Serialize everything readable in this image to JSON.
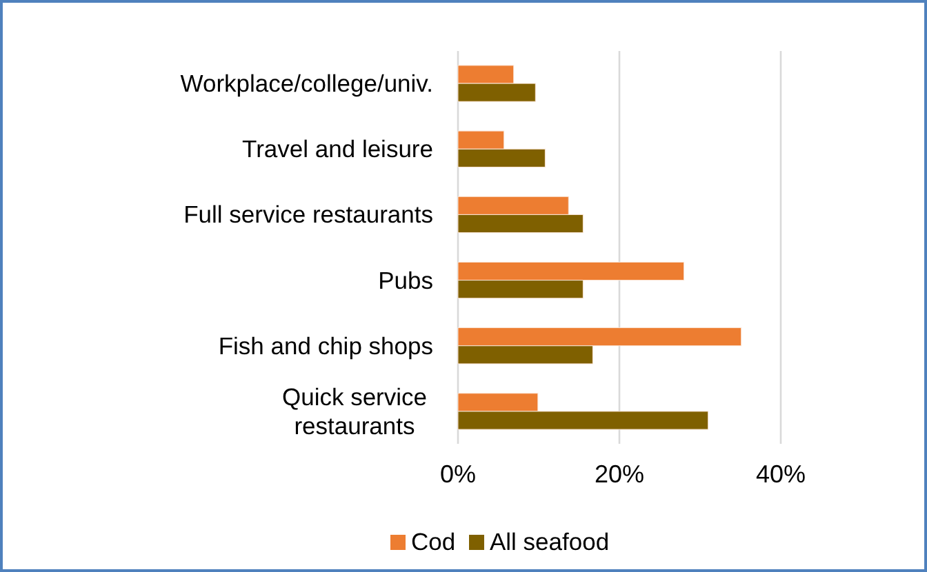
{
  "chart_data": {
    "type": "bar",
    "orientation": "horizontal",
    "categories": [
      "Workplace/college/univ.",
      "Travel and leisure",
      "Full service restaurants",
      "Pubs",
      "Fish and chip shops",
      "Quick service restaurants"
    ],
    "series": [
      {
        "name": "Cod",
        "color": "#ed7d31",
        "values": [
          6.9,
          5.7,
          13.7,
          28.0,
          35.1,
          9.9
        ]
      },
      {
        "name": "All seafood",
        "color": "#7f6000",
        "values": [
          9.6,
          10.8,
          15.5,
          15.5,
          16.7,
          31.0
        ]
      }
    ],
    "xlim": [
      0,
      40
    ],
    "xticks": [
      {
        "value": 0,
        "label": "0%"
      },
      {
        "value": 20,
        "label": "20%"
      },
      {
        "value": 40,
        "label": "40%"
      }
    ],
    "grid": "x",
    "legend": "bottom"
  }
}
